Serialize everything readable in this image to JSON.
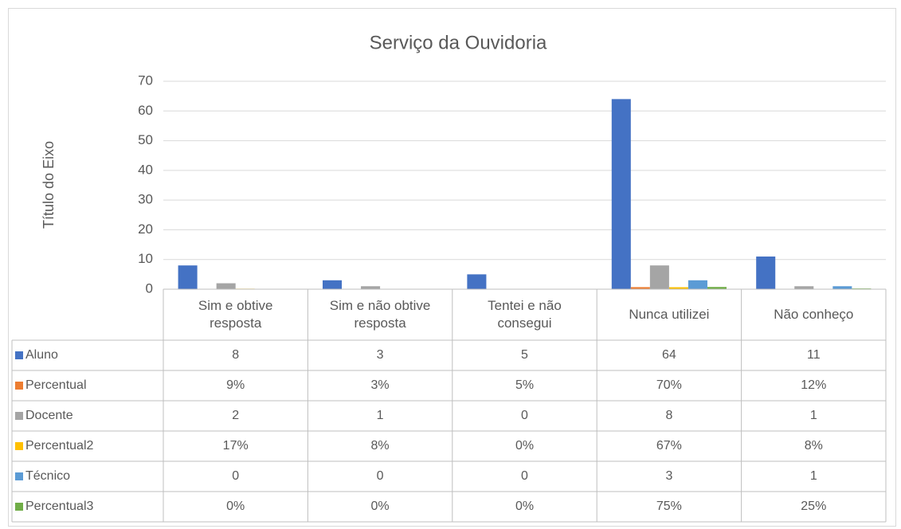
{
  "chart_data": {
    "type": "bar",
    "title": "Serviço da Ouvidoria",
    "y_label": "Título do Eixo",
    "categories": [
      "Sim e obtive resposta",
      "Sim e não obtive resposta",
      "Tentei e não consegui",
      "Nunca utilizei",
      "Não conheço"
    ],
    "series": [
      {
        "name": "Aluno",
        "color": "#4472c4",
        "values": [
          8,
          3,
          5,
          64,
          11
        ]
      },
      {
        "name": "Percentual",
        "color": "#ed7d31",
        "values": [
          0.09,
          0.03,
          0.05,
          0.7,
          0.12
        ],
        "value_labels": [
          "9%",
          "3%",
          "5%",
          "70%",
          "12%"
        ]
      },
      {
        "name": "Docente",
        "color": "#a5a5a5",
        "values": [
          2,
          1,
          0,
          8,
          1
        ]
      },
      {
        "name": "Percentual2",
        "color": "#ffc000",
        "values": [
          0.17,
          0.08,
          0,
          0.67,
          0.08
        ],
        "value_labels": [
          "17%",
          "8%",
          "0%",
          "67%",
          "8%"
        ]
      },
      {
        "name": "Técnico",
        "color": "#5b9bd5",
        "values": [
          0,
          0,
          0,
          3,
          1
        ]
      },
      {
        "name": "Percentual3",
        "color": "#70ad47",
        "values": [
          0,
          0,
          0,
          0.75,
          0.25
        ],
        "value_labels": [
          "0%",
          "0%",
          "0%",
          "75%",
          "25%"
        ]
      }
    ],
    "ylim": [
      0,
      70
    ],
    "yticks": [
      0,
      10,
      20,
      30,
      40,
      50,
      60,
      70
    ],
    "grid": true,
    "data_table": true
  }
}
